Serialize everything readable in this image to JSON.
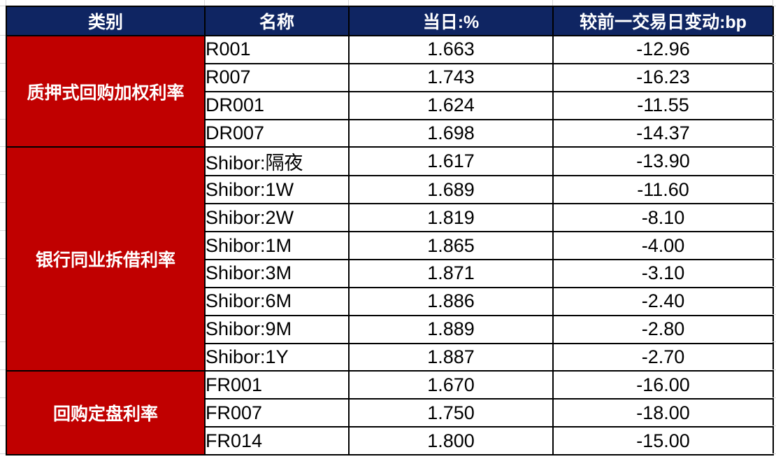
{
  "colors": {
    "header_bg": "#0F2562",
    "category_bg": "#C00000",
    "border": "#000000",
    "gridline": "#D6D6D6",
    "text": "#000000",
    "header_text": "#FFFFFF"
  },
  "table": {
    "columns": [
      "类别",
      "名称",
      "当日:%",
      "较前一交易日变动:bp"
    ],
    "groups": [
      {
        "category": "质押式回购加权利率",
        "rows": [
          {
            "name": "R001",
            "today": "1.663",
            "change": "-12.96"
          },
          {
            "name": "R007",
            "today": "1.743",
            "change": "-16.23"
          },
          {
            "name": "DR001",
            "today": "1.624",
            "change": "-11.55"
          },
          {
            "name": "DR007",
            "today": "1.698",
            "change": "-14.37"
          }
        ]
      },
      {
        "category": "银行同业拆借利率",
        "rows": [
          {
            "name": "Shibor:隔夜",
            "today": "1.617",
            "change": "-13.90"
          },
          {
            "name": "Shibor:1W",
            "today": "1.689",
            "change": "-11.60"
          },
          {
            "name": "Shibor:2W",
            "today": "1.819",
            "change": "-8.10"
          },
          {
            "name": "Shibor:1M",
            "today": "1.865",
            "change": "-4.00"
          },
          {
            "name": "Shibor:3M",
            "today": "1.871",
            "change": "-3.10"
          },
          {
            "name": "Shibor:6M",
            "today": "1.886",
            "change": "-2.40"
          },
          {
            "name": "Shibor:9M",
            "today": "1.889",
            "change": "-2.80"
          },
          {
            "name": "Shibor:1Y",
            "today": "1.887",
            "change": "-2.70"
          }
        ]
      },
      {
        "category": "回购定盘利率",
        "rows": [
          {
            "name": "FR001",
            "today": "1.670",
            "change": "-16.00"
          },
          {
            "name": "FR007",
            "today": "1.750",
            "change": "-18.00"
          },
          {
            "name": "FR014",
            "today": "1.800",
            "change": "-15.00"
          }
        ]
      }
    ]
  },
  "chart_data": {
    "type": "table",
    "columns": [
      "类别",
      "名称",
      "当日:%",
      "较前一交易日变动:bp"
    ],
    "rows": [
      [
        "质押式回购加权利率",
        "R001",
        1.663,
        -12.96
      ],
      [
        "质押式回购加权利率",
        "R007",
        1.743,
        -16.23
      ],
      [
        "质押式回购加权利率",
        "DR001",
        1.624,
        -11.55
      ],
      [
        "质押式回购加权利率",
        "DR007",
        1.698,
        -14.37
      ],
      [
        "银行同业拆借利率",
        "Shibor:隔夜",
        1.617,
        -13.9
      ],
      [
        "银行同业拆借利率",
        "Shibor:1W",
        1.689,
        -11.6
      ],
      [
        "银行同业拆借利率",
        "Shibor:2W",
        1.819,
        -8.1
      ],
      [
        "银行同业拆借利率",
        "Shibor:1M",
        1.865,
        -4.0
      ],
      [
        "银行同业拆借利率",
        "Shibor:3M",
        1.871,
        -3.1
      ],
      [
        "银行同业拆借利率",
        "Shibor:6M",
        1.886,
        -2.4
      ],
      [
        "银行同业拆借利率",
        "Shibor:9M",
        1.889,
        -2.8
      ],
      [
        "银行同业拆借利率",
        "Shibor:1Y",
        1.887,
        -2.7
      ],
      [
        "回购定盘利率",
        "FR001",
        1.67,
        -16.0
      ],
      [
        "回购定盘利率",
        "FR007",
        1.75,
        -18.0
      ],
      [
        "回购定盘利率",
        "FR014",
        1.8,
        -15.0
      ]
    ]
  }
}
